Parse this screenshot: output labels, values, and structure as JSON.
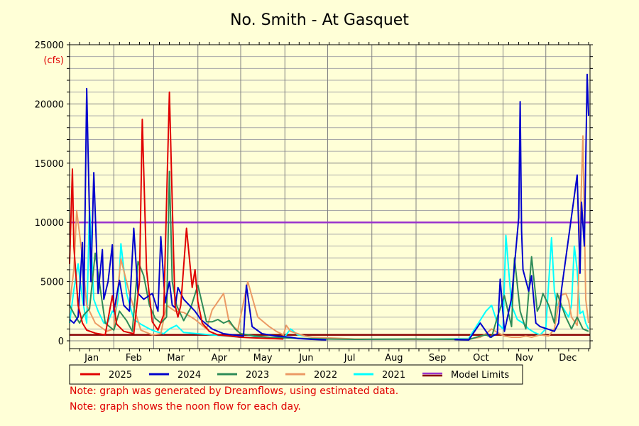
{
  "chart_data": {
    "type": "line",
    "title": "No. Smith - At Gasquet",
    "unit_label": "(cfs)",
    "xlabel": "",
    "ylabel": "",
    "ylim": [
      0,
      25000
    ],
    "xlim": [
      0,
      365
    ],
    "y_ticks": [
      0,
      5000,
      10000,
      15000,
      20000,
      25000
    ],
    "month_labels": [
      "Jan",
      "Feb",
      "Mar",
      "Apr",
      "May",
      "Jun",
      "Jul",
      "Aug",
      "Sep",
      "Oct",
      "Nov",
      "Dec"
    ],
    "month_starts": [
      0,
      31,
      59,
      90,
      120,
      151,
      181,
      212,
      243,
      273,
      304,
      334,
      365
    ],
    "grid": true,
    "legend_placement": "bottom",
    "model_limits": {
      "name": "Model Limits",
      "upper": 10000,
      "lower": 500,
      "upper_color": "#9933CC",
      "lower_color": "#880000"
    },
    "series": [
      {
        "name": "2025",
        "color": "#E00000",
        "x": [
          0,
          2,
          3,
          6,
          9,
          12,
          18,
          25,
          30,
          31,
          33,
          38,
          45,
          49,
          51,
          54,
          58,
          62,
          66,
          70,
          73,
          74,
          76,
          78,
          82,
          86,
          88,
          90,
          93,
          98,
          104,
          112,
          120,
          128,
          140,
          150
        ],
        "y": [
          6500,
          14500,
          8000,
          3000,
          1500,
          900,
          650,
          500,
          3800,
          3000,
          1400,
          800,
          600,
          5000,
          18700,
          6000,
          1600,
          900,
          2200,
          21000,
          7000,
          3000,
          2000,
          3000,
          9500,
          4500,
          6000,
          3300,
          1500,
          800,
          500,
          400,
          300,
          250,
          200,
          150
        ]
      },
      {
        "name": "2024",
        "color": "#0000CC",
        "x": [
          0,
          3,
          6,
          9,
          10,
          12,
          15,
          17,
          20,
          23,
          24,
          27,
          30,
          31,
          35,
          38,
          42,
          45,
          48,
          52,
          58,
          62,
          64,
          67,
          70,
          72,
          74,
          76,
          80,
          84,
          88,
          92,
          100,
          108,
          115,
          122,
          124,
          128,
          135,
          145,
          155,
          160,
          170,
          180,
          270,
          280,
          288,
          295,
          300,
          302,
          305,
          310,
          315,
          316,
          317,
          318,
          322,
          324,
          327,
          330,
          335,
          340,
          343,
          345,
          356,
          358,
          359,
          361,
          363,
          364
        ],
        "y": [
          1800,
          1500,
          2000,
          8300,
          3000,
          21300,
          5000,
          14200,
          4000,
          7700,
          3500,
          5000,
          8100,
          2500,
          5100,
          3000,
          2500,
          9500,
          4000,
          3500,
          4000,
          2500,
          8800,
          3200,
          5000,
          3000,
          2800,
          4500,
          3500,
          3000,
          2500,
          1800,
          1000,
          600,
          500,
          400,
          4700,
          1200,
          600,
          400,
          300,
          200,
          120,
          80,
          100,
          80,
          1500,
          300,
          600,
          5200,
          800,
          3600,
          10400,
          20200,
          9300,
          6000,
          4200,
          5500,
          1500,
          1200,
          1000,
          800,
          1500,
          4300,
          14000,
          5700,
          11700,
          8000,
          22500,
          19000
        ]
      },
      {
        "name": "2023",
        "color": "#2E8B57",
        "x": [
          0,
          3,
          7,
          10,
          14,
          18,
          22,
          25,
          28,
          31,
          35,
          40,
          44,
          48,
          52,
          56,
          60,
          64,
          68,
          70,
          72,
          75,
          80,
          85,
          90,
          96,
          100,
          104,
          108,
          112,
          116,
          120,
          126,
          130,
          140,
          150,
          165,
          180,
          200,
          240,
          280,
          288,
          292,
          296,
          300,
          305,
          310,
          312,
          316,
          320,
          324,
          328,
          330,
          332,
          336,
          340,
          342,
          348,
          352,
          356,
          360,
          364
        ],
        "y": [
          3000,
          2300,
          1500,
          2200,
          2700,
          7400,
          4000,
          1500,
          1200,
          900,
          2500,
          1700,
          800,
          6700,
          5500,
          3000,
          1900,
          1500,
          2000,
          14300,
          5000,
          3000,
          1700,
          2800,
          4700,
          1600,
          1600,
          1800,
          1500,
          1700,
          1000,
          600,
          500,
          400,
          300,
          250,
          200,
          150,
          120,
          150,
          100,
          400,
          500,
          300,
          2000,
          3800,
          1200,
          7000,
          2500,
          1000,
          7100,
          2500,
          3000,
          4000,
          3000,
          1500,
          4000,
          2000,
          1000,
          2000,
          1000,
          800
        ]
      },
      {
        "name": "2022",
        "color": "#EB9A64",
        "x": [
          0,
          3,
          5,
          7,
          9,
          12,
          18,
          26,
          31,
          36,
          42,
          50,
          58,
          64,
          68,
          74,
          80,
          88,
          96,
          100,
          108,
          112,
          118,
          125,
          132,
          140,
          145,
          150,
          152,
          155,
          160,
          165,
          170,
          180,
          200,
          240,
          280,
          288,
          292,
          296,
          300,
          305,
          310,
          316,
          320,
          324,
          330,
          336,
          340,
          344,
          348,
          350,
          352,
          356,
          360,
          362,
          364
        ],
        "y": [
          3000,
          6000,
          11000,
          9000,
          7000,
          3000,
          1500,
          800,
          1000,
          6900,
          4000,
          900,
          500,
          600,
          3000,
          2500,
          2400,
          1800,
          1000,
          2600,
          4000,
          1500,
          900,
          5000,
          2000,
          1200,
          800,
          500,
          1300,
          800,
          600,
          400,
          300,
          250,
          150,
          120,
          150,
          300,
          600,
          1000,
          700,
          400,
          300,
          300,
          400,
          300,
          500,
          400,
          1000,
          3800,
          4000,
          3400,
          2000,
          1300,
          17300,
          3500,
          1500
        ]
      },
      {
        "name": "2021",
        "color": "#00FFFF",
        "x": [
          0,
          3,
          6,
          9,
          12,
          14,
          17,
          20,
          24,
          27,
          30,
          32,
          34,
          36,
          40,
          45,
          50,
          56,
          60,
          66,
          70,
          75,
          80,
          90,
          100,
          110,
          120,
          130,
          140,
          150,
          155,
          160,
          170,
          180,
          200,
          240,
          280,
          292,
          296,
          300,
          304,
          306,
          310,
          314,
          318,
          322,
          326,
          330,
          334,
          338,
          340,
          342,
          346,
          350,
          352,
          354,
          356,
          358,
          360,
          362,
          364
        ],
        "y": [
          1500,
          4300,
          6500,
          3500,
          1500,
          11300,
          3500,
          2500,
          1500,
          1600,
          2500,
          2200,
          3500,
          8200,
          4000,
          1800,
          1400,
          1000,
          800,
          600,
          1000,
          1300,
          700,
          600,
          500,
          400,
          300,
          300,
          250,
          200,
          1000,
          500,
          300,
          200,
          150,
          120,
          200,
          2500,
          3000,
          1500,
          1000,
          8900,
          3000,
          1800,
          1500,
          1000,
          700,
          500,
          1000,
          8700,
          4200,
          3000,
          2800,
          2000,
          3000,
          8000,
          6000,
          2300,
          2500,
          1500,
          1000
        ]
      }
    ]
  },
  "notes": [
    "Note: graph was generated by Dreamflows, using estimated data.",
    "Note: graph shows the noon flow for each day."
  ]
}
